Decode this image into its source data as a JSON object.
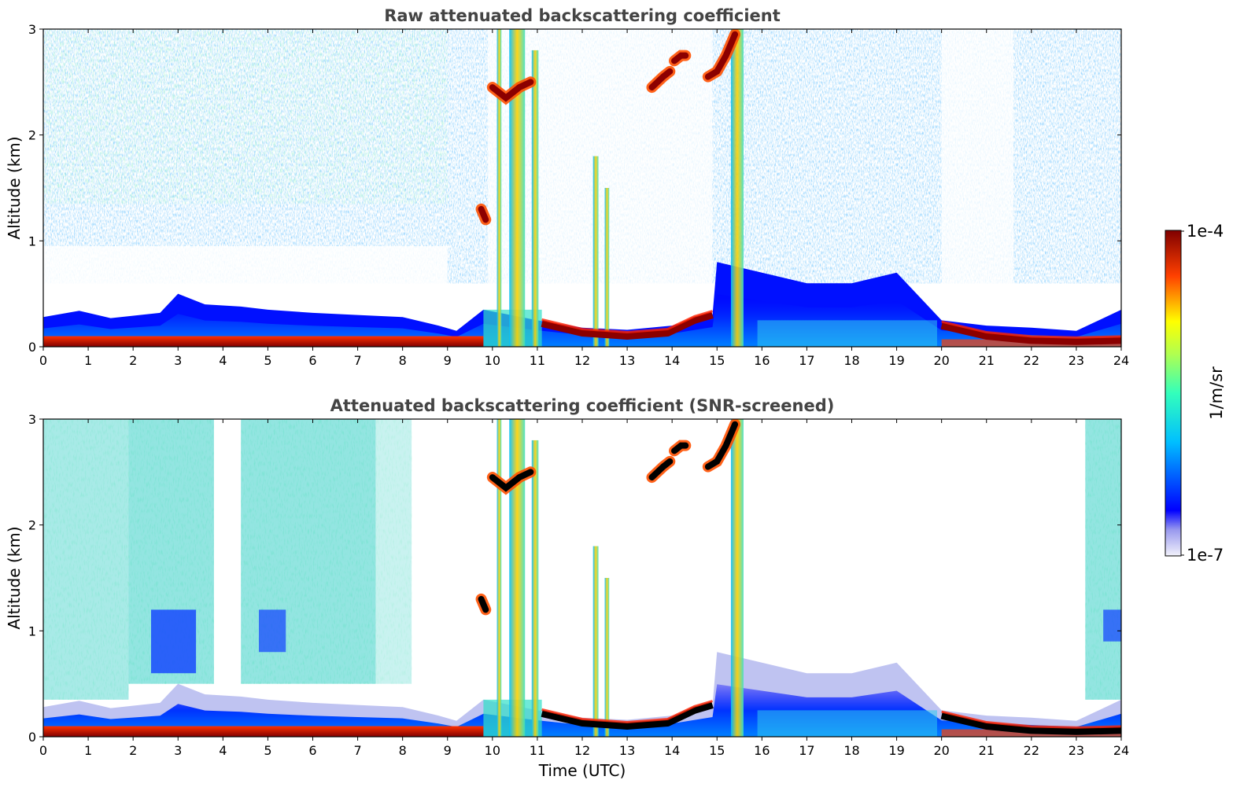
{
  "chart_data": [
    {
      "type": "heatmap",
      "title": "Raw attenuated backscattering coefficient",
      "xlabel": "",
      "ylabel": "Altitude (km)",
      "xlim": [
        0,
        24
      ],
      "ylim": [
        0,
        3
      ],
      "x_ticks": [
        "0",
        "1",
        "2",
        "3",
        "4",
        "5",
        "6",
        "7",
        "8",
        "9",
        "10",
        "11",
        "12",
        "13",
        "14",
        "15",
        "16",
        "17",
        "18",
        "19",
        "20",
        "21",
        "22",
        "23",
        "24"
      ],
      "y_ticks": [
        "0",
        "1",
        "2",
        "3"
      ],
      "screened": false
    },
    {
      "type": "heatmap",
      "title": "Attenuated backscattering coefficient (SNR-screened)",
      "xlabel": "Time (UTC)",
      "ylabel": "Altitude (km)",
      "xlim": [
        0,
        24
      ],
      "ylim": [
        0,
        3
      ],
      "x_ticks": [
        "0",
        "1",
        "2",
        "3",
        "4",
        "5",
        "6",
        "7",
        "8",
        "9",
        "10",
        "11",
        "12",
        "13",
        "14",
        "15",
        "16",
        "17",
        "18",
        "19",
        "20",
        "21",
        "22",
        "23",
        "24"
      ],
      "y_ticks": [
        "0",
        "1",
        "2",
        "3"
      ],
      "screened": true
    }
  ],
  "colorbar": {
    "label": "1/m/sr",
    "max_label": "1e-4",
    "min_label": "1e-7",
    "range": [
      1e-07,
      0.0001
    ],
    "scale": "log",
    "colormap": "jet"
  },
  "features": {
    "surface_layer_top_km": 0.1,
    "boundary_layer_top_km": [
      [
        0,
        0.28
      ],
      [
        0.8,
        0.34
      ],
      [
        1.5,
        0.27
      ],
      [
        2.6,
        0.32
      ],
      [
        3,
        0.5
      ],
      [
        3.6,
        0.4
      ],
      [
        4.4,
        0.38
      ],
      [
        5,
        0.35
      ],
      [
        6,
        0.32
      ],
      [
        7,
        0.3
      ],
      [
        8,
        0.28
      ],
      [
        8.8,
        0.2
      ],
      [
        9.2,
        0.15
      ],
      [
        9.8,
        0.35
      ],
      [
        11,
        0.25
      ],
      [
        12,
        0.18
      ],
      [
        13,
        0.16
      ],
      [
        14,
        0.2
      ],
      [
        14.9,
        0.3
      ],
      [
        15,
        0.8
      ],
      [
        16,
        0.7
      ],
      [
        17,
        0.6
      ],
      [
        18,
        0.6
      ],
      [
        19,
        0.7
      ],
      [
        20,
        0.25
      ],
      [
        21,
        0.2
      ],
      [
        22,
        0.18
      ],
      [
        23,
        0.15
      ],
      [
        24,
        0.35
      ]
    ],
    "low_cloud": [
      [
        11.1,
        0.22
      ],
      [
        12,
        0.13
      ],
      [
        13,
        0.1
      ],
      [
        13.9,
        0.13
      ],
      [
        14.5,
        0.25
      ],
      [
        14.9,
        0.3
      ]
    ],
    "low_cloud_2": [
      [
        20,
        0.2
      ],
      [
        21,
        0.1
      ],
      [
        22,
        0.06
      ],
      [
        23,
        0.05
      ],
      [
        24,
        0.06
      ]
    ],
    "plumes": [
      {
        "x": 10.15,
        "w": 0.1,
        "top_km": 3.0
      },
      {
        "x": 10.55,
        "w": 0.35,
        "top_km": 3.0
      },
      {
        "x": 10.95,
        "w": 0.15,
        "top_km": 2.8
      },
      {
        "x": 12.3,
        "w": 0.12,
        "top_km": 1.8
      },
      {
        "x": 12.55,
        "w": 0.1,
        "top_km": 1.5
      },
      {
        "x": 15.45,
        "w": 0.28,
        "top_km": 3.0
      }
    ],
    "high_cloud_segments": [
      [
        [
          9.75,
          1.3
        ],
        [
          9.85,
          1.2
        ]
      ],
      [
        [
          10.0,
          2.45
        ],
        [
          10.3,
          2.35
        ],
        [
          10.6,
          2.45
        ],
        [
          10.85,
          2.5
        ]
      ],
      [
        [
          13.55,
          2.45
        ],
        [
          13.8,
          2.55
        ],
        [
          13.95,
          2.6
        ]
      ],
      [
        [
          14.05,
          2.7
        ],
        [
          14.2,
          2.75
        ],
        [
          14.3,
          2.75
        ]
      ],
      [
        [
          14.8,
          2.55
        ],
        [
          15.0,
          2.6
        ],
        [
          15.2,
          2.75
        ],
        [
          15.4,
          2.95
        ]
      ]
    ]
  }
}
